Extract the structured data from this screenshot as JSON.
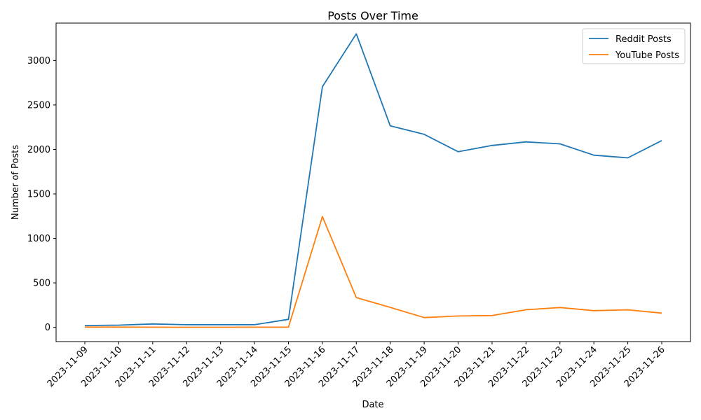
{
  "chart_data": {
    "type": "line",
    "title": "Posts Over Time",
    "xlabel": "Date",
    "ylabel": "Number of Posts",
    "categories": [
      "2023-11-09",
      "2023-11-10",
      "2023-11-11",
      "2023-11-12",
      "2023-11-13",
      "2023-11-14",
      "2023-11-15",
      "2023-11-16",
      "2023-11-17",
      "2023-11-18",
      "2023-11-19",
      "2023-11-20",
      "2023-11-21",
      "2023-11-22",
      "2023-11-23",
      "2023-11-24",
      "2023-11-25",
      "2023-11-26"
    ],
    "series": [
      {
        "name": "Reddit Posts",
        "color": "#1f77b4",
        "values": [
          20,
          25,
          38,
          30,
          30,
          30,
          90,
          2705,
          3300,
          2265,
          2170,
          1975,
          2045,
          2085,
          2063,
          1935,
          1905,
          2100
        ]
      },
      {
        "name": "YouTube Posts",
        "color": "#ff7f0e",
        "values": [
          3,
          3,
          2,
          1,
          1,
          2,
          2,
          1245,
          335,
          225,
          110,
          128,
          133,
          198,
          223,
          188,
          197,
          160
        ]
      }
    ],
    "ylim": [
      -160,
      3420
    ],
    "yticks": [
      0,
      500,
      1000,
      1500,
      2000,
      2500,
      3000
    ],
    "ytick_labels": [
      "0",
      "500",
      "1000",
      "1500",
      "2000",
      "2500",
      "3000"
    ],
    "grid": false,
    "legend": "top-right"
  }
}
